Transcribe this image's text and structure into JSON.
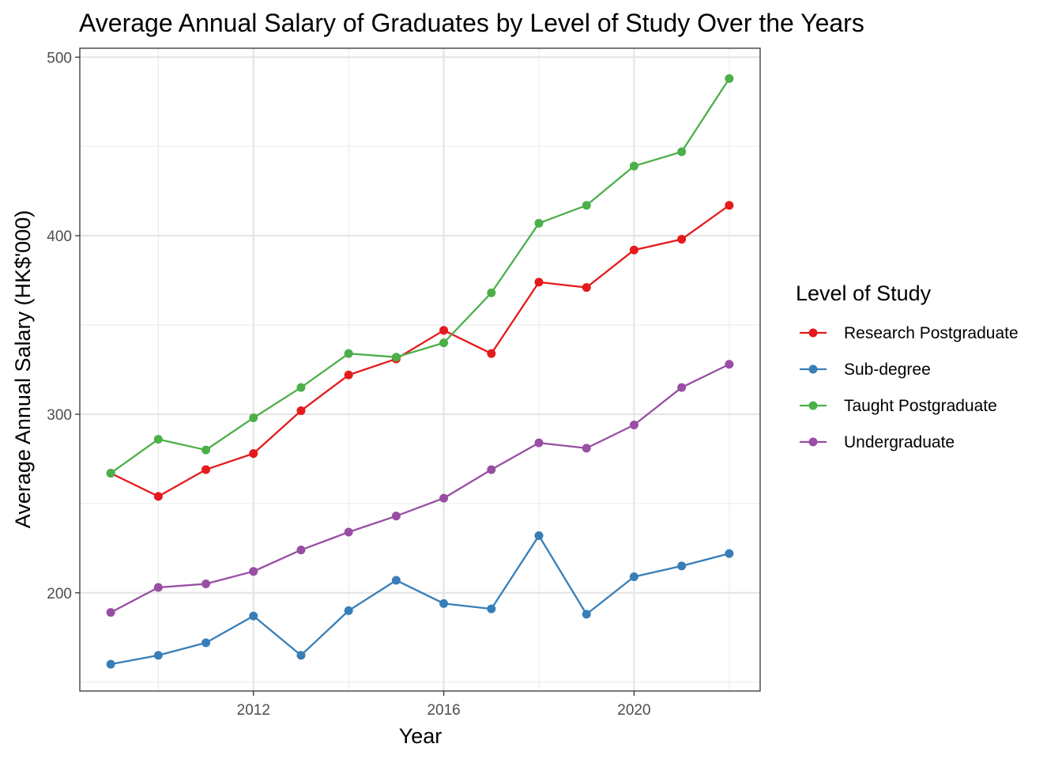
{
  "chart_data": {
    "type": "line",
    "title": "Average Annual Salary of Graduates by Level of Study Over the Years",
    "xlabel": "Year",
    "ylabel": "Average Annual Salary (HK$'000)",
    "x": [
      2009,
      2010,
      2011,
      2012,
      2013,
      2014,
      2015,
      2016,
      2017,
      2018,
      2019,
      2020,
      2021,
      2022
    ],
    "xlim": [
      2008.35,
      2022.65
    ],
    "ylim": [
      145,
      505
    ],
    "x_ticks": [
      2012,
      2016,
      2020
    ],
    "x_tick_labels": [
      "2012",
      "2016",
      "2020"
    ],
    "y_ticks": [
      200,
      300,
      400,
      500
    ],
    "y_tick_labels": [
      "200",
      "300",
      "400",
      "500"
    ],
    "grid": true,
    "legend": {
      "title": "Level of Study",
      "position": "right"
    },
    "series": [
      {
        "name": "Research Postgraduate",
        "color": "#e41a1c",
        "values": [
          267,
          254,
          269,
          278,
          302,
          322,
          331,
          347,
          334,
          374,
          371,
          392,
          398,
          417
        ]
      },
      {
        "name": "Sub-degree",
        "color": "#377eb8",
        "values": [
          160,
          165,
          172,
          187,
          165,
          190,
          207,
          194,
          191,
          232,
          188,
          209,
          215,
          222
        ]
      },
      {
        "name": "Taught Postgraduate",
        "color": "#4daf4a",
        "values": [
          267,
          286,
          280,
          298,
          315,
          334,
          332,
          340,
          368,
          407,
          417,
          439,
          447,
          488
        ]
      },
      {
        "name": "Undergraduate",
        "color": "#984ea3",
        "values": [
          189,
          203,
          205,
          212,
          224,
          234,
          243,
          253,
          269,
          284,
          281,
          294,
          315,
          328
        ]
      }
    ]
  }
}
